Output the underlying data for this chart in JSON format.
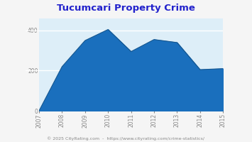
{
  "title": "Tucumcari Property Crime",
  "title_color": "#2222cc",
  "years": [
    2007,
    2008,
    2009,
    2010,
    2011,
    2012,
    2013,
    2014,
    2015
  ],
  "values": [
    0,
    220,
    350,
    405,
    295,
    355,
    340,
    205,
    210
  ],
  "yticks": [
    0,
    200,
    400
  ],
  "ylim_max": 460,
  "area_color": "#1a6fbd",
  "bg_plot_color": "#ddeef8",
  "wall_left_color": "#aaaaaa",
  "wall_right_color": "#c8dce8",
  "floor_color": "#b8b8b8",
  "grid_color": "#ffffff",
  "fig_bg_color": "#f5f5f5",
  "footer_text": "© 2025 CityRating.com  -  https://www.cityrating.com/crime-statistics/",
  "footer_color": "#888888",
  "tick_color": "#888888",
  "title_fontsize": 9.5,
  "tick_fontsize": 5.5,
  "footer_fontsize": 4.5
}
